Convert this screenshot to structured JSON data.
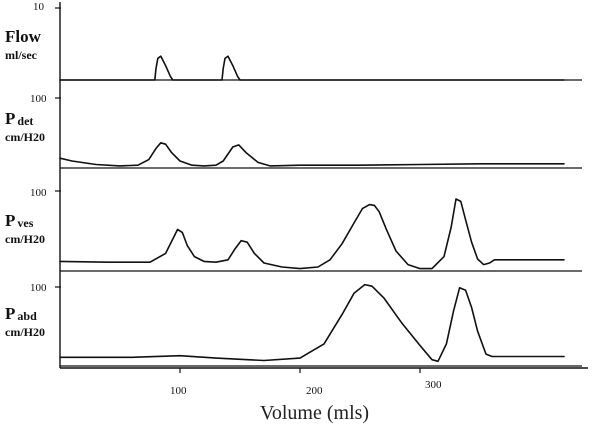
{
  "chart_data": {
    "type": "line",
    "xlabel": "Volume (mls)",
    "xticks": [
      100,
      200,
      300
    ],
    "xlim": [
      0,
      420
    ],
    "panels": [
      {
        "name": "Flow",
        "name_sub": "",
        "unit": "ml/sec",
        "ytick": "10",
        "ylim": [
          0,
          10
        ],
        "series": [
          {
            "x": [
              0,
              79,
              80,
              81.5,
              84,
              88,
              92,
              94,
              135,
              136,
              137.5,
              140,
              144,
              148,
              150,
              420
            ],
            "y": [
              0,
              0,
              1.6,
              3.0,
              3.3,
              2.0,
              0.5,
              0,
              0,
              1.6,
              3.0,
              3.3,
              2.0,
              0.5,
              0,
              0
            ]
          }
        ]
      },
      {
        "name": "P",
        "name_sub": "det",
        "unit": "cm/H20",
        "ytick": "100",
        "ylim": [
          0,
          100
        ],
        "series": [
          {
            "x": [
              0,
              10,
              30,
              50,
              65,
              74,
              80,
              84,
              88,
              93,
              100,
              110,
              120,
              130,
              136,
              140,
              144,
              149,
              155,
              165,
              175,
              200,
              250,
              300,
              350,
              380,
              420
            ],
            "y": [
              14,
              10,
              5,
              3,
              4,
              12,
              28,
              36,
              34,
              22,
              10,
              4,
              3,
              4,
              10,
              20,
              30,
              33,
              22,
              8,
              3,
              4,
              4,
              5,
              6,
              6,
              6
            ]
          }
        ]
      },
      {
        "name": "P",
        "name_sub": "ves",
        "unit": "cm/H20",
        "ytick": "100",
        "ylim": [
          0,
          100
        ],
        "series": [
          {
            "x": [
              0,
              40,
              75,
              88,
              94,
              98,
              102,
              106,
              112,
              120,
              130,
              140,
              146,
              151,
              156,
              162,
              170,
              185,
              200,
              215,
              225,
              235,
              245,
              252,
              258,
              262,
              266,
              272,
              280,
              290,
              300,
              310,
              320,
              326,
              330,
              334,
              338,
              343,
              348,
              353,
              358,
              362,
              380,
              420
            ],
            "y": [
              12,
              11,
              11,
              22,
              40,
              52,
              48,
              32,
              18,
              12,
              11,
              14,
              28,
              38,
              36,
              22,
              10,
              5,
              3,
              5,
              14,
              34,
              60,
              78,
              83,
              82,
              74,
              52,
              25,
              8,
              3,
              3,
              18,
              55,
              90,
              87,
              64,
              36,
              15,
              8,
              10,
              14,
              14,
              14
            ]
          }
        ]
      },
      {
        "name": "P",
        "name_sub": "abd",
        "unit": "cm/H20",
        "ytick": "100",
        "ylim": [
          0,
          100
        ],
        "series": [
          {
            "x": [
              0,
              60,
              100,
              130,
              170,
              200,
              220,
              235,
              245,
              254,
              260,
              270,
              285,
              300,
              310,
              315,
              322,
              328,
              333,
              338,
              343,
              348,
              355,
              360,
              380,
              420
            ],
            "y": [
              11,
              11,
              13,
              10,
              7,
              10,
              28,
              65,
              92,
              103,
              101,
              86,
              54,
              26,
              8,
              6,
              28,
              70,
              99,
              96,
              74,
              44,
              15,
              12,
              12,
              12
            ]
          }
        ]
      }
    ]
  }
}
